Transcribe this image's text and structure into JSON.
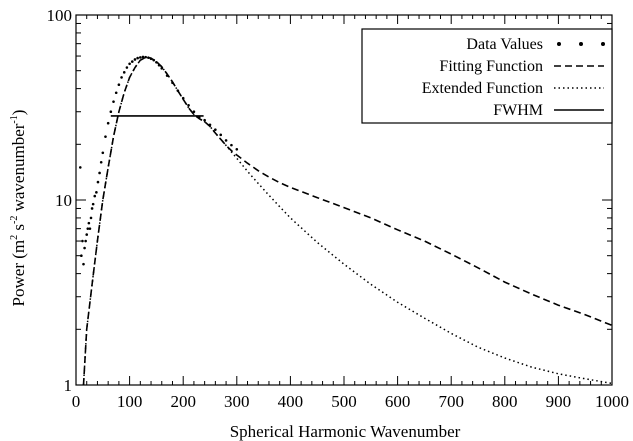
{
  "chart_data": {
    "type": "line",
    "title": "",
    "xlabel": "Spherical Harmonic Wavenumber",
    "ylabel_main": "Power (m",
    "ylabel_sup1": "2",
    "ylabel_mid": " s",
    "ylabel_sup2": "-2",
    "ylabel_end": " wavenumber",
    "ylabel_sup3": "-1",
    "ylabel_close": ")",
    "xlim": [
      0,
      1000
    ],
    "ylim": [
      1,
      100
    ],
    "yscale": "log",
    "grid": false,
    "legend_position": "top-right",
    "x_ticks": [
      "0",
      "100",
      "200",
      "300",
      "400",
      "500",
      "600",
      "700",
      "800",
      "900",
      "1000"
    ],
    "y_ticks": [
      "1",
      "10",
      "100"
    ],
    "series": [
      {
        "name": "Data Values",
        "style": "points",
        "x": [
          8,
          10,
          12,
          14,
          16,
          18,
          20,
          22,
          24,
          26,
          28,
          30,
          32,
          35,
          38,
          41,
          44,
          47,
          50,
          55,
          60,
          65,
          70,
          75,
          80,
          85,
          90,
          95,
          100,
          105,
          110,
          115,
          120,
          125,
          130,
          135,
          140,
          145,
          150,
          155,
          160,
          170,
          180,
          190,
          200,
          210,
          220,
          230,
          240,
          250,
          260,
          270,
          280,
          290,
          300
        ],
        "y": [
          15,
          5,
          6,
          4.5,
          5.5,
          6,
          6.5,
          7,
          7.5,
          7,
          8,
          9,
          9.5,
          10.5,
          11,
          12.5,
          14,
          16,
          18,
          22,
          26,
          30,
          34,
          38,
          42,
          46,
          49,
          52,
          54.5,
          56,
          57.5,
          58.5,
          59,
          59.3,
          59.2,
          58.8,
          58,
          57,
          55.5,
          53.5,
          51.5,
          47,
          43,
          39,
          35.5,
          32.5,
          30,
          28,
          27,
          25.5,
          24,
          22.5,
          21,
          19.8,
          18.8
        ]
      },
      {
        "name": "Fitting Function",
        "style": "dashed",
        "x": [
          14,
          20,
          30,
          40,
          50,
          60,
          70,
          80,
          90,
          100,
          110,
          120,
          130,
          140,
          150,
          160,
          170,
          180,
          190,
          200,
          210,
          220,
          230,
          240,
          250,
          260,
          270,
          280,
          290,
          300,
          320,
          340,
          360,
          380,
          400,
          450,
          500,
          550,
          600,
          650,
          700,
          750,
          800,
          850,
          900,
          950,
          1000
        ],
        "y": [
          1,
          2,
          3.5,
          6,
          10,
          15,
          22,
          30,
          38,
          46,
          52,
          57,
          59,
          58.5,
          56,
          52.5,
          48,
          43.5,
          39,
          35,
          31.5,
          29,
          27.5,
          26.5,
          25,
          23,
          21.3,
          19.7,
          18.5,
          17.5,
          15.8,
          14.4,
          13.3,
          12.4,
          11.7,
          10.3,
          9.1,
          8.0,
          6.9,
          6.0,
          5.1,
          4.3,
          3.6,
          3.1,
          2.7,
          2.4,
          2.1
        ]
      },
      {
        "name": "Extended Function",
        "style": "dotted",
        "x": [
          14,
          20,
          30,
          40,
          50,
          60,
          70,
          80,
          90,
          100,
          110,
          120,
          130,
          140,
          150,
          160,
          170,
          180,
          190,
          200,
          210,
          220,
          230,
          240,
          250,
          260,
          270,
          280,
          290,
          300,
          320,
          340,
          360,
          380,
          400,
          450,
          500,
          550,
          600,
          650,
          700,
          750,
          800,
          850,
          900,
          950,
          1000
        ],
        "y": [
          1,
          2,
          3.5,
          6,
          10,
          15,
          22,
          30,
          38,
          46,
          52,
          57,
          59,
          58.5,
          56,
          52.5,
          48,
          43.5,
          39,
          35,
          31.5,
          29,
          27.5,
          26.5,
          25,
          23,
          21.3,
          19.7,
          18.2,
          16.8,
          14.3,
          12.3,
          10.6,
          9.2,
          8.0,
          5.9,
          4.5,
          3.5,
          2.8,
          2.3,
          1.9,
          1.6,
          1.4,
          1.25,
          1.15,
          1.08,
          1.02
        ]
      },
      {
        "name": "FWHM",
        "style": "solid",
        "x": [
          65,
          238
        ],
        "y": [
          28.5,
          28.5
        ]
      }
    ]
  }
}
